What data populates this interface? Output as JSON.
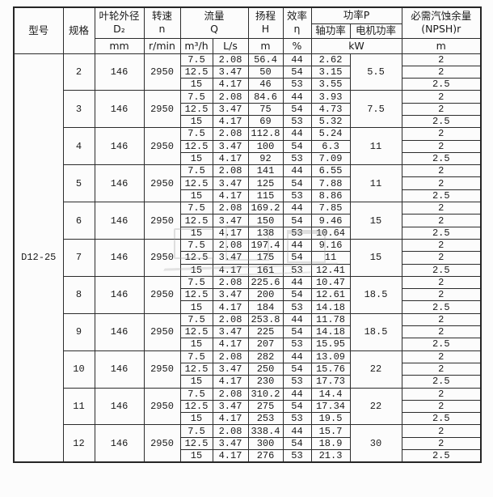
{
  "table": {
    "header": {
      "model": "型号",
      "spec": "规格",
      "impeller": {
        "line1": "叶轮外径",
        "line2": "D₂",
        "unit": "mm"
      },
      "speed": {
        "line1": "转速",
        "line2": "n",
        "unit": "r/min"
      },
      "flow": {
        "line1": "流量",
        "line2": "Q",
        "unit_m3h": "m³/h",
        "unit_ls": "L/s"
      },
      "head": {
        "line1": "扬程",
        "line2": "H",
        "unit": "m"
      },
      "efficiency": {
        "line1": "效率",
        "line2": "η",
        "unit": "%"
      },
      "power": {
        "title": "功率P",
        "shaft": "轴功率",
        "motor": "电机功率",
        "unit": "kW"
      },
      "npsh": {
        "line1": "必需汽蚀余量",
        "line2": "(NPSH)r",
        "unit": "m"
      }
    },
    "model_value": "D12-25",
    "groups": [
      {
        "spec": "2",
        "impeller": "146",
        "speed": "2950",
        "motor_power": "5.5",
        "rows": [
          {
            "q_m3h": "7.5",
            "q_ls": "2.08",
            "head": "56.4",
            "eff": "44",
            "shaft": "2.62",
            "npsh": "2"
          },
          {
            "q_m3h": "12.5",
            "q_ls": "3.47",
            "head": "50",
            "eff": "54",
            "shaft": "3.15",
            "npsh": "2"
          },
          {
            "q_m3h": "15",
            "q_ls": "4.17",
            "head": "46",
            "eff": "53",
            "shaft": "3.55",
            "npsh": "2.5"
          }
        ]
      },
      {
        "spec": "3",
        "impeller": "146",
        "speed": "2950",
        "motor_power": "7.5",
        "rows": [
          {
            "q_m3h": "7.5",
            "q_ls": "2.08",
            "head": "84.6",
            "eff": "44",
            "shaft": "3.93",
            "npsh": "2"
          },
          {
            "q_m3h": "12.5",
            "q_ls": "3.47",
            "head": "75",
            "eff": "54",
            "shaft": "4.73",
            "npsh": "2"
          },
          {
            "q_m3h": "15",
            "q_ls": "4.17",
            "head": "69",
            "eff": "53",
            "shaft": "5.32",
            "npsh": "2.5"
          }
        ]
      },
      {
        "spec": "4",
        "impeller": "146",
        "speed": "2950",
        "motor_power": "11",
        "rows": [
          {
            "q_m3h": "7.5",
            "q_ls": "2.08",
            "head": "112.8",
            "eff": "44",
            "shaft": "5.24",
            "npsh": "2"
          },
          {
            "q_m3h": "12.5",
            "q_ls": "3.47",
            "head": "100",
            "eff": "54",
            "shaft": "6.3",
            "npsh": "2"
          },
          {
            "q_m3h": "15",
            "q_ls": "4.17",
            "head": "92",
            "eff": "53",
            "shaft": "7.09",
            "npsh": "2.5"
          }
        ]
      },
      {
        "spec": "5",
        "impeller": "146",
        "speed": "2950",
        "motor_power": "11",
        "rows": [
          {
            "q_m3h": "7.5",
            "q_ls": "2.08",
            "head": "141",
            "eff": "44",
            "shaft": "6.55",
            "npsh": "2"
          },
          {
            "q_m3h": "12.5",
            "q_ls": "3.47",
            "head": "125",
            "eff": "54",
            "shaft": "7.88",
            "npsh": "2"
          },
          {
            "q_m3h": "15",
            "q_ls": "4.17",
            "head": "115",
            "eff": "53",
            "shaft": "8.86",
            "npsh": "2.5"
          }
        ]
      },
      {
        "spec": "6",
        "impeller": "146",
        "speed": "2950",
        "motor_power": "15",
        "rows": [
          {
            "q_m3h": "7.5",
            "q_ls": "2.08",
            "head": "169.2",
            "eff": "44",
            "shaft": "7.85",
            "npsh": "2"
          },
          {
            "q_m3h": "12.5",
            "q_ls": "3.47",
            "head": "150",
            "eff": "54",
            "shaft": "9.46",
            "npsh": "2"
          },
          {
            "q_m3h": "15",
            "q_ls": "4.17",
            "head": "138",
            "eff": "53",
            "shaft": "10.64",
            "npsh": "2.5"
          }
        ]
      },
      {
        "spec": "7",
        "impeller": "146",
        "speed": "2950",
        "motor_power": "15",
        "rows": [
          {
            "q_m3h": "7.5",
            "q_ls": "2.08",
            "head": "197.4",
            "eff": "44",
            "shaft": "9.16",
            "npsh": "2"
          },
          {
            "q_m3h": "12.5",
            "q_ls": "3.47",
            "head": "175",
            "eff": "54",
            "shaft": "11",
            "npsh": "2"
          },
          {
            "q_m3h": "15",
            "q_ls": "4.17",
            "head": "161",
            "eff": "53",
            "shaft": "12.41",
            "npsh": "2.5"
          }
        ]
      },
      {
        "spec": "8",
        "impeller": "146",
        "speed": "2950",
        "motor_power": "18.5",
        "rows": [
          {
            "q_m3h": "7.5",
            "q_ls": "2.08",
            "head": "225.6",
            "eff": "44",
            "shaft": "10.47",
            "npsh": "2"
          },
          {
            "q_m3h": "12.5",
            "q_ls": "3.47",
            "head": "200",
            "eff": "54",
            "shaft": "12.61",
            "npsh": "2"
          },
          {
            "q_m3h": "15",
            "q_ls": "4.17",
            "head": "184",
            "eff": "53",
            "shaft": "14.18",
            "npsh": "2.5"
          }
        ]
      },
      {
        "spec": "9",
        "impeller": "146",
        "speed": "2950",
        "motor_power": "18.5",
        "rows": [
          {
            "q_m3h": "7.5",
            "q_ls": "2.08",
            "head": "253.8",
            "eff": "44",
            "shaft": "11.78",
            "npsh": "2"
          },
          {
            "q_m3h": "12.5",
            "q_ls": "3.47",
            "head": "225",
            "eff": "54",
            "shaft": "14.18",
            "npsh": "2"
          },
          {
            "q_m3h": "15",
            "q_ls": "4.17",
            "head": "207",
            "eff": "53",
            "shaft": "15.95",
            "npsh": "2.5"
          }
        ]
      },
      {
        "spec": "10",
        "impeller": "146",
        "speed": "2950",
        "motor_power": "22",
        "rows": [
          {
            "q_m3h": "7.5",
            "q_ls": "2.08",
            "head": "282",
            "eff": "44",
            "shaft": "13.09",
            "npsh": "2"
          },
          {
            "q_m3h": "12.5",
            "q_ls": "3.47",
            "head": "250",
            "eff": "54",
            "shaft": "15.76",
            "npsh": "2"
          },
          {
            "q_m3h": "15",
            "q_ls": "4.17",
            "head": "230",
            "eff": "53",
            "shaft": "17.73",
            "npsh": "2.5"
          }
        ]
      },
      {
        "spec": "11",
        "impeller": "146",
        "speed": "2950",
        "motor_power": "22",
        "rows": [
          {
            "q_m3h": "7.5",
            "q_ls": "2.08",
            "head": "310.2",
            "eff": "44",
            "shaft": "14.4",
            "npsh": "2"
          },
          {
            "q_m3h": "12.5",
            "q_ls": "3.47",
            "head": "275",
            "eff": "54",
            "shaft": "17.34",
            "npsh": "2"
          },
          {
            "q_m3h": "15",
            "q_ls": "4.17",
            "head": "253",
            "eff": "53",
            "shaft": "19.5",
            "npsh": "2.5"
          }
        ]
      },
      {
        "spec": "12",
        "impeller": "146",
        "speed": "2950",
        "motor_power": "30",
        "rows": [
          {
            "q_m3h": "7.5",
            "q_ls": "2.08",
            "head": "338.4",
            "eff": "44",
            "shaft": "15.7",
            "npsh": "2"
          },
          {
            "q_m3h": "12.5",
            "q_ls": "3.47",
            "head": "300",
            "eff": "54",
            "shaft": "18.9",
            "npsh": "2"
          },
          {
            "q_m3h": "15",
            "q_ls": "4.17",
            "head": "276",
            "eff": "53",
            "shaft": "21.3",
            "npsh": "2.5"
          }
        ]
      }
    ]
  }
}
